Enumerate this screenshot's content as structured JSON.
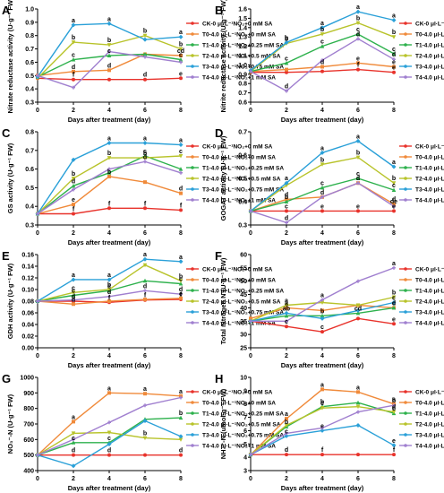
{
  "figure": {
    "series_colors": [
      "#e8322b",
      "#f08a3a",
      "#2db14c",
      "#b8c32a",
      "#2aa0d8",
      "#a07fcf"
    ],
    "legend_labels": [
      "CK-0 μl·L⁻¹NO₂+0 mM SA",
      "T0-4.0 μl·L⁻¹NO₂+0 mM SA",
      "T1-4.0 μl·L⁻¹NO₂+0.25 mM SA",
      "T2-4.0 μl·L⁻¹NO₂+0.5 mM SA",
      "T3-4.0 μl·L⁻¹NO₂+0.75 mM SA",
      "T4-4.0 μl·L⁻¹NO₂+1 mM SA"
    ]
  },
  "chart_data": [
    {
      "panel": "A",
      "type": "line",
      "ylabel": "Nitrate reductase activity (U·g⁻¹ FW)",
      "xlabel": "Days after treatment (day)",
      "x": [
        0,
        2,
        4,
        6,
        8
      ],
      "xlim": [
        0,
        8
      ],
      "ylim": [
        0.3,
        1.0
      ],
      "yticks": [
        0.3,
        0.4,
        0.5,
        0.6,
        0.7,
        0.8,
        0.9,
        1.0
      ],
      "series": [
        {
          "values": [
            0.48,
            0.47,
            0.47,
            0.47,
            0.48
          ],
          "letters": [
            "",
            "f",
            "",
            "d",
            "e"
          ]
        },
        {
          "values": [
            0.5,
            0.53,
            0.54,
            0.66,
            0.65
          ],
          "letters": [
            "",
            "d",
            "d",
            "",
            "cd"
          ]
        },
        {
          "values": [
            0.49,
            0.62,
            0.65,
            0.66,
            0.62
          ],
          "letters": [
            "",
            "c",
            "c",
            "",
            "c"
          ]
        },
        {
          "values": [
            0.48,
            0.75,
            0.73,
            0.8,
            0.7
          ],
          "letters": [
            "",
            "b",
            "b",
            "b",
            "b"
          ]
        },
        {
          "values": [
            0.49,
            0.88,
            0.89,
            0.77,
            0.79
          ],
          "letters": [
            "",
            "a",
            "a",
            "",
            "a"
          ]
        },
        {
          "values": [
            0.5,
            0.41,
            0.68,
            0.64,
            0.6
          ],
          "letters": [
            "",
            "",
            "",
            "",
            ""
          ]
        }
      ]
    },
    {
      "panel": "B",
      "type": "line",
      "ylabel": "Nitrite reductase activity (U·g⁻¹ FW)",
      "xlabel": "Days after treatment (day)",
      "x": [
        0,
        2,
        4,
        6,
        8
      ],
      "xlim": [
        0,
        8
      ],
      "ylim": [
        0.6,
        1.6
      ],
      "yticks": [
        0.6,
        0.7,
        0.8,
        0.9,
        1.0,
        1.1,
        1.2,
        1.3,
        1.4,
        1.5,
        1.6
      ],
      "series": [
        {
          "values": [
            0.92,
            0.92,
            0.93,
            0.95,
            0.92
          ],
          "letters": [
            "",
            "",
            "",
            "f",
            "e"
          ]
        },
        {
          "values": [
            0.93,
            0.95,
            0.98,
            1.02,
            0.98
          ],
          "letters": [
            "",
            "",
            "d",
            "e",
            "e"
          ]
        },
        {
          "values": [
            0.93,
            1.02,
            1.2,
            1.33,
            1.12
          ],
          "letters": [
            "",
            "c",
            "c",
            "c",
            "c"
          ]
        },
        {
          "values": [
            0.93,
            1.23,
            1.33,
            1.45,
            1.3
          ],
          "letters": [
            "",
            "b",
            "b",
            "b",
            "b"
          ]
        },
        {
          "values": [
            0.94,
            1.24,
            1.4,
            1.57,
            1.48
          ],
          "letters": [
            "",
            "b",
            "a",
            "a",
            "a"
          ]
        },
        {
          "values": [
            0.93,
            0.72,
            1.05,
            1.28,
            1.06
          ],
          "letters": [
            "",
            "d",
            "",
            "d",
            "d"
          ]
        }
      ]
    },
    {
      "panel": "C",
      "type": "line",
      "ylabel": "GS activity (U·g⁻¹ FW)",
      "xlabel": "Days after treatment (day)",
      "x": [
        0,
        2,
        4,
        6,
        8
      ],
      "xlim": [
        0,
        8
      ],
      "ylim": [
        0.3,
        0.8
      ],
      "yticks": [
        0.3,
        0.4,
        0.5,
        0.6,
        0.7,
        0.8
      ],
      "series": [
        {
          "values": [
            0.36,
            0.36,
            0.39,
            0.39,
            0.38
          ],
          "letters": [
            "",
            "f",
            "f",
            "f",
            "f"
          ]
        },
        {
          "values": [
            0.36,
            0.41,
            0.56,
            0.53,
            0.47
          ],
          "letters": [
            "",
            "e",
            "b",
            "",
            "d"
          ]
        },
        {
          "values": [
            0.36,
            0.51,
            0.58,
            0.67,
            0.6
          ],
          "letters": [
            "",
            "d",
            "",
            "c",
            ""
          ]
        },
        {
          "values": [
            0.36,
            0.55,
            0.66,
            0.66,
            0.67
          ],
          "letters": [
            "",
            "b",
            "b",
            "b",
            "c"
          ]
        },
        {
          "values": [
            0.36,
            0.65,
            0.74,
            0.74,
            0.73
          ],
          "letters": [
            "",
            "",
            "a",
            "a",
            "a"
          ]
        },
        {
          "values": [
            0.36,
            0.49,
            0.6,
            0.64,
            0.58
          ],
          "letters": [
            "",
            "",
            "",
            "d",
            ""
          ]
        }
      ]
    },
    {
      "panel": "D",
      "type": "line",
      "ylabel": "GOGAT activity (U·g⁻¹ FW)",
      "xlabel": "Days after treatment (day)",
      "x": [
        0,
        2,
        4,
        6,
        8
      ],
      "xlim": [
        0,
        8
      ],
      "ylim": [
        0.3,
        0.7
      ],
      "yticks": [
        0.3,
        0.4,
        0.5,
        0.6,
        0.7
      ],
      "series": [
        {
          "values": [
            0.36,
            0.36,
            0.36,
            0.36,
            0.36
          ],
          "letters": [
            "",
            "c",
            "e",
            "e",
            "e"
          ]
        },
        {
          "values": [
            0.36,
            0.41,
            0.42,
            0.48,
            0.39
          ],
          "letters": [
            "",
            "d",
            "d",
            "d",
            "d"
          ]
        },
        {
          "values": [
            0.36,
            0.4,
            0.46,
            0.5,
            0.45
          ],
          "letters": [
            "",
            "b",
            "c",
            "c",
            "c"
          ]
        },
        {
          "values": [
            0.36,
            0.47,
            0.56,
            0.59,
            0.48
          ],
          "letters": [
            "",
            "",
            "b",
            "b",
            "b"
          ]
        },
        {
          "values": [
            0.36,
            0.48,
            0.61,
            0.66,
            0.55
          ],
          "letters": [
            "",
            "a",
            "a",
            "a",
            "a"
          ]
        },
        {
          "values": [
            0.36,
            0.31,
            0.42,
            0.48,
            0.38
          ],
          "letters": [
            "",
            "d",
            "",
            "",
            "de"
          ]
        }
      ]
    },
    {
      "panel": "E",
      "type": "line",
      "ylabel": "GDH activity (U·g⁻¹ FW)",
      "xlabel": "Days after treatment (day)",
      "x": [
        0,
        2,
        4,
        6,
        8
      ],
      "xlim": [
        0,
        8
      ],
      "ylim": [
        0.0,
        0.16
      ],
      "yticks": [
        0.0,
        0.02,
        0.04,
        0.06,
        0.08,
        0.1,
        0.12,
        0.14,
        0.16
      ],
      "series": [
        {
          "values": [
            0.08,
            0.08,
            0.078,
            0.082,
            0.083
          ],
          "letters": [
            "",
            "d",
            "f",
            "f",
            "f"
          ]
        },
        {
          "values": [
            0.08,
            0.075,
            0.08,
            0.083,
            0.085
          ],
          "letters": [
            "",
            "d",
            "",
            "",
            "e"
          ]
        },
        {
          "values": [
            0.08,
            0.09,
            0.098,
            0.115,
            0.11
          ],
          "letters": [
            "",
            "c",
            "c",
            "",
            "c"
          ]
        },
        {
          "values": [
            0.08,
            0.095,
            0.1,
            0.142,
            0.115
          ],
          "letters": [
            "",
            "c",
            "b",
            "",
            "b"
          ]
        },
        {
          "values": [
            0.08,
            0.117,
            0.117,
            0.152,
            0.148
          ],
          "letters": [
            "",
            "a",
            "a",
            "a",
            "a"
          ]
        },
        {
          "values": [
            0.08,
            0.082,
            0.088,
            0.098,
            0.092
          ],
          "letters": [
            "",
            "",
            "d",
            "d",
            "d"
          ]
        }
      ]
    },
    {
      "panel": "F",
      "type": "line",
      "ylabel": "Total nitrogen N (U·g⁻¹ FW)",
      "xlabel": "Days after treatment (day)",
      "x": [
        0,
        2,
        4,
        6,
        8
      ],
      "xlim": [
        0,
        8
      ],
      "ylim": [
        25,
        60
      ],
      "yticks": [
        25,
        30,
        35,
        40,
        45,
        50,
        55,
        60
      ],
      "series": [
        {
          "values": [
            35,
            33,
            31,
            36,
            34
          ],
          "letters": [
            "",
            "c",
            "c",
            "",
            "e"
          ]
        },
        {
          "values": [
            36,
            40,
            39,
            41,
            40
          ],
          "letters": [
            "",
            "a",
            "",
            "",
            "d"
          ]
        },
        {
          "values": [
            35,
            37,
            37,
            38,
            40
          ],
          "letters": [
            "",
            "",
            "b",
            "cd",
            "c"
          ]
        },
        {
          "values": [
            35,
            41,
            42,
            41,
            44
          ],
          "letters": [
            "",
            "a",
            "",
            "",
            "b"
          ]
        },
        {
          "values": [
            35,
            38,
            36,
            39,
            42
          ],
          "letters": [
            "",
            "ab",
            "",
            "",
            "c"
          ]
        },
        {
          "values": [
            35,
            35,
            43,
            50,
            55
          ],
          "letters": [
            "",
            "",
            "a",
            "",
            "a"
          ]
        }
      ]
    },
    {
      "panel": "G",
      "type": "line",
      "ylabel": "NO₃⁻-N (U·g⁻¹ FW)",
      "xlabel": "Days after treatment (day)",
      "x": [
        0,
        2,
        4,
        6,
        8
      ],
      "xlim": [
        0,
        8
      ],
      "ylim": [
        400,
        1000
      ],
      "yticks": [
        400,
        500,
        600,
        700,
        800,
        900,
        1000
      ],
      "series": [
        {
          "values": [
            500,
            500,
            500,
            500,
            500
          ],
          "letters": [
            "",
            "d",
            "d",
            "",
            "d"
          ]
        },
        {
          "values": [
            500,
            715,
            900,
            895,
            880
          ],
          "letters": [
            "",
            "a",
            "a",
            "a",
            "a"
          ]
        },
        {
          "values": [
            500,
            580,
            580,
            730,
            740
          ],
          "letters": [
            "",
            "c",
            "c",
            "",
            "b"
          ]
        },
        {
          "values": [
            500,
            640,
            645,
            610,
            600
          ],
          "letters": [
            "",
            "",
            "",
            "b",
            ""
          ]
        },
        {
          "values": [
            500,
            430,
            570,
            720,
            620
          ],
          "letters": [
            "",
            "",
            "",
            "",
            ""
          ]
        },
        {
          "values": [
            500,
            600,
            710,
            820,
            870
          ],
          "letters": [
            "",
            "",
            "",
            "",
            ""
          ]
        }
      ]
    },
    {
      "panel": "H",
      "type": "line",
      "ylabel": "NH₄⁺-N (umol·g⁻¹ FW)",
      "xlabel": "Days after treatment (day)",
      "x": [
        0,
        2,
        4,
        6,
        8
      ],
      "xlim": [
        0,
        8
      ],
      "ylim": [
        3,
        10
      ],
      "yticks": [
        3,
        4,
        5,
        6,
        7,
        8,
        9,
        10
      ],
      "series": [
        {
          "values": [
            4.2,
            4.2,
            4.2,
            4.2,
            4.2
          ],
          "letters": [
            "",
            "d",
            "f",
            "",
            "f"
          ]
        },
        {
          "values": [
            4.2,
            6.9,
            9.1,
            8.9,
            8.0
          ],
          "letters": [
            "",
            "a",
            "a",
            "a",
            "a"
          ]
        },
        {
          "values": [
            4.2,
            6.3,
            7.8,
            8.1,
            7.3
          ],
          "letters": [
            "",
            "b",
            "b",
            "",
            "c"
          ]
        },
        {
          "values": [
            4.2,
            6.4,
            7.7,
            7.8,
            7.4
          ],
          "letters": [
            "",
            "",
            "c",
            "",
            "d"
          ]
        },
        {
          "values": [
            4.2,
            5.6,
            6.0,
            6.4,
            4.9
          ],
          "letters": [
            "",
            "c",
            "e",
            "",
            "e"
          ]
        },
        {
          "values": [
            4.2,
            5.8,
            6.2,
            7.4,
            7.9
          ],
          "letters": [
            "",
            "",
            "",
            "",
            "b"
          ]
        }
      ]
    }
  ]
}
